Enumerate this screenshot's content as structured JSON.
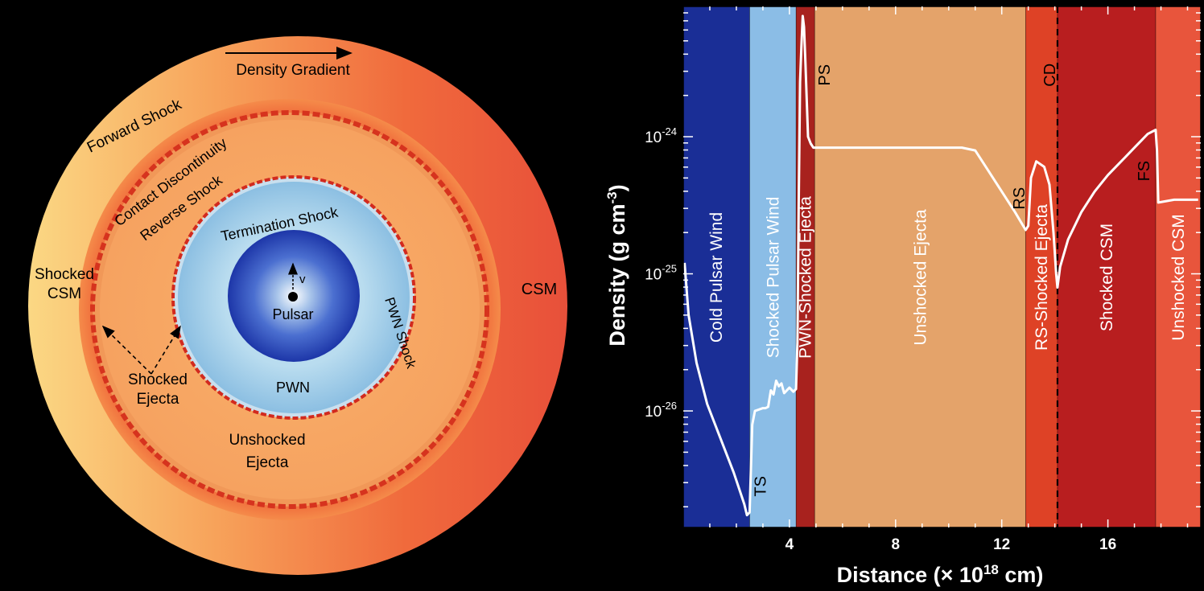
{
  "diagram": {
    "density_gradient": "Density Gradient",
    "forward_shock": "Forward Shock",
    "contact_discontinuity": "Contact Discontinuity",
    "reverse_shock": "Reverse Shock",
    "termination_shock": "Termination Shock",
    "pwn_shock": "PWN Shock",
    "shocked_csm": [
      "Shocked",
      "CSM"
    ],
    "csm": "CSM",
    "shocked_ejecta": [
      "Shocked",
      "Ejecta"
    ],
    "unshocked_ejecta": [
      "Unshocked",
      "Ejecta"
    ],
    "pulsar": "Pulsar",
    "velocity": "v",
    "pwn": "PWN"
  },
  "chart_data": {
    "type": "line",
    "title": "",
    "xlabel_prefix": "Distance (× 10",
    "xlabel_exp": "18",
    "xlabel_suffix": " cm)",
    "ylabel_prefix": "Density (g cm",
    "ylabel_exp": "-3",
    "ylabel_suffix": ")",
    "yscale": "log",
    "xlim": [
      0,
      19.5
    ],
    "ylim_log": [
      -26.85,
      -23.05
    ],
    "x_ticks": [
      4,
      8,
      12,
      16
    ],
    "x_tick_labels": [
      "4",
      "8",
      "12",
      "16"
    ],
    "y_ticks": [
      -26,
      -25,
      -24
    ],
    "y_tick_labels": [
      {
        "base": "10",
        "exp": "-26"
      },
      {
        "base": "10",
        "exp": "-25"
      },
      {
        "base": "10",
        "exp": "-24"
      }
    ],
    "regions": [
      {
        "name": "Cold Pulsar Wind",
        "x0": 0,
        "x1": 2.5,
        "color": "#1a2e96"
      },
      {
        "name": "Shocked Pulsar Wind",
        "x0": 2.5,
        "x1": 4.25,
        "color": "#8bbde6"
      },
      {
        "name": "PWN-Shocked Ejecta",
        "x0": 4.25,
        "x1": 4.95,
        "color": "#a8221e"
      },
      {
        "name": "Unshocked Ejecta",
        "x0": 4.95,
        "x1": 12.9,
        "color": "#e4a36a"
      },
      {
        "name": "RS-Shocked Ejecta",
        "x0": 12.9,
        "x1": 14.1,
        "color": "#de4226"
      },
      {
        "name": "Shocked CSM",
        "x0": 14.1,
        "x1": 17.8,
        "color": "#b81e1f"
      },
      {
        "name": "Unshocked CSM",
        "x0": 17.8,
        "x1": 19.5,
        "color": "#e8553c"
      }
    ],
    "annotations": [
      {
        "text": "TS",
        "x": 2.9,
        "ylog": -26.55
      },
      {
        "text": "PS",
        "x": 5.3,
        "ylog": -23.55
      },
      {
        "text": "CD",
        "x": 13.8,
        "ylog": -23.55
      },
      {
        "text": "RS",
        "x": 12.65,
        "ylog": -24.45
      },
      {
        "text": "FS",
        "x": 17.35,
        "ylog": -24.25
      }
    ],
    "contact_discontinuity_x": 14.1,
    "series": [
      {
        "x": [
          0.05,
          0.2,
          0.5,
          0.9,
          1.4,
          1.9,
          2.3,
          2.4,
          2.5,
          2.6,
          2.7,
          3.0,
          3.1,
          3.2,
          3.3,
          3.4,
          3.5,
          3.6,
          3.7,
          3.8,
          4.0,
          4.15,
          4.25,
          4.3,
          4.35,
          4.4,
          4.45,
          4.5,
          4.55,
          4.6,
          4.7,
          4.8,
          4.9,
          4.95,
          6,
          8,
          10.5,
          11.0,
          11.5,
          12,
          12.5,
          12.9,
          13.0,
          13.1,
          13.3,
          13.6,
          13.8,
          13.95,
          14.05,
          14.1,
          14.2,
          14.5,
          15,
          15.5,
          16,
          16.5,
          17,
          17.5,
          17.8,
          17.85,
          17.9,
          18.5,
          19.4
        ],
        "ylog": [
          -24.92,
          -25.3,
          -25.65,
          -25.95,
          -26.2,
          -26.45,
          -26.68,
          -26.76,
          -26.74,
          -26.1,
          -26.0,
          -25.98,
          -25.98,
          -25.97,
          -25.85,
          -25.88,
          -25.78,
          -25.82,
          -25.8,
          -25.87,
          -25.83,
          -25.86,
          -25.84,
          -25.5,
          -24.5,
          -23.6,
          -23.35,
          -23.12,
          -23.2,
          -23.45,
          -24.0,
          -24.05,
          -24.08,
          -24.08,
          -24.08,
          -24.08,
          -24.08,
          -24.1,
          -24.25,
          -24.4,
          -24.55,
          -24.68,
          -24.65,
          -24.3,
          -24.18,
          -24.22,
          -24.35,
          -24.7,
          -25.0,
          -25.1,
          -24.95,
          -24.75,
          -24.55,
          -24.4,
          -24.28,
          -24.18,
          -24.08,
          -23.98,
          -23.95,
          -24.1,
          -24.48,
          -24.46,
          -24.46
        ]
      }
    ]
  }
}
